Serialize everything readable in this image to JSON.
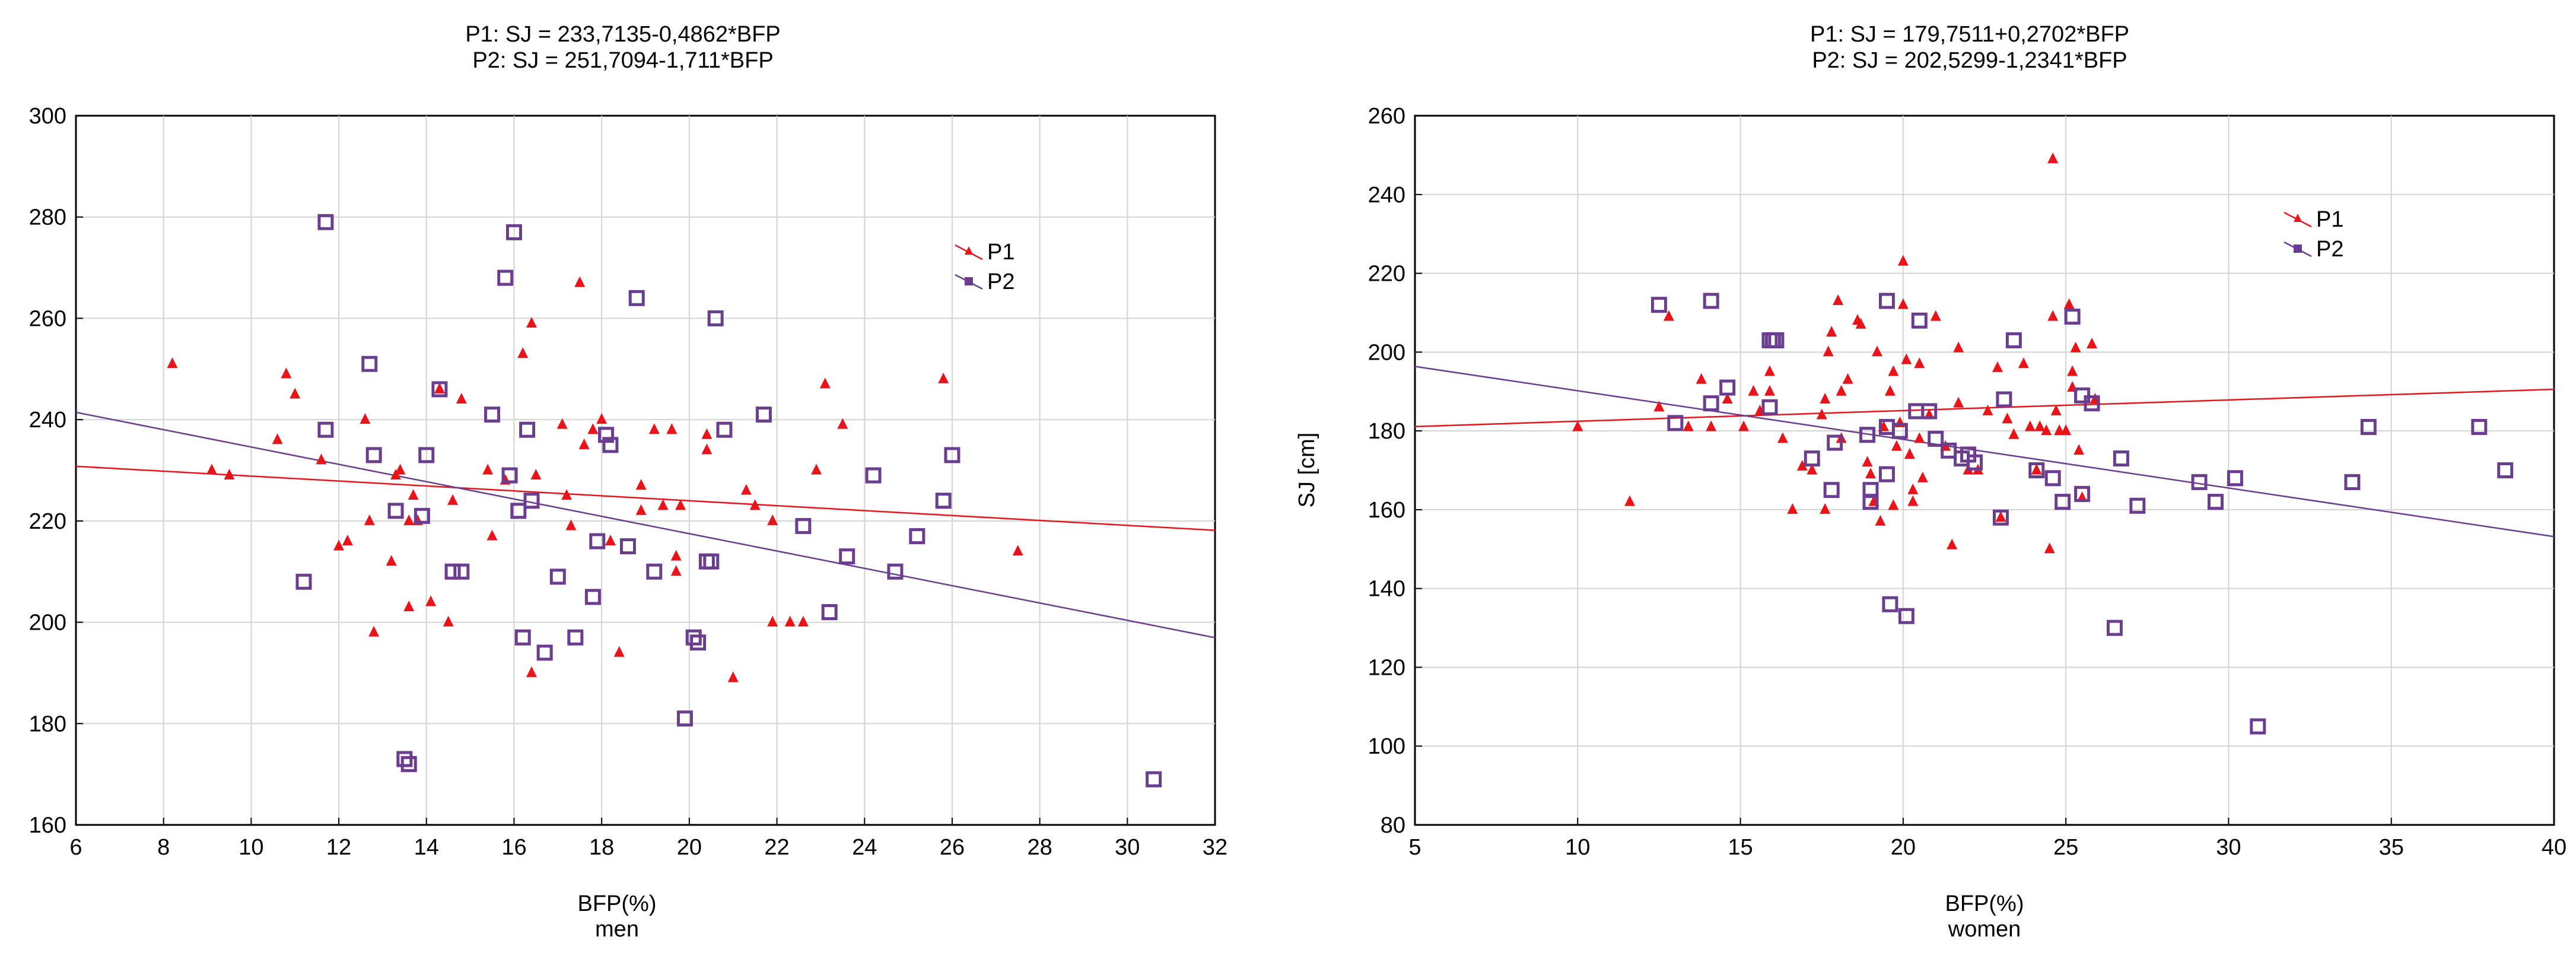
{
  "chart_data": [
    {
      "type": "scatter",
      "id": "men",
      "title_lines": [
        "P1: SJ = 233,7135-0,4862*BFP",
        "P2: SJ = 251,7094-1,711*BFP"
      ],
      "xlabel": "BFP(%)",
      "xlabel2": "men",
      "ylabel": "",
      "xlim": [
        6,
        32
      ],
      "ylim": [
        160,
        300
      ],
      "xticks": [
        6,
        8,
        10,
        12,
        14,
        16,
        18,
        20,
        22,
        24,
        26,
        28,
        30,
        32
      ],
      "yticks": [
        160,
        180,
        200,
        220,
        240,
        260,
        280,
        300
      ],
      "grid": true,
      "legend": {
        "position": "top-right",
        "entries": [
          "P1",
          "P2"
        ]
      },
      "colors": {
        "P1": "#e8141a",
        "P2": "#6b3d8f"
      },
      "series": [
        {
          "name": "P1",
          "marker": "triangle",
          "fit": {
            "intercept": 233.7135,
            "slope": -0.4862
          },
          "points": [
            [
              8.2,
              251
            ],
            [
              9.1,
              230
            ],
            [
              9.5,
              229
            ],
            [
              10.6,
              236
            ],
            [
              10.8,
              249
            ],
            [
              11,
              245
            ],
            [
              11.6,
              232
            ],
            [
              12,
              215
            ],
            [
              12.2,
              216
            ],
            [
              12.6,
              240
            ],
            [
              12.7,
              220
            ],
            [
              12.8,
              198
            ],
            [
              13.2,
              212
            ],
            [
              13.3,
              229
            ],
            [
              13.4,
              230
            ],
            [
              13.6,
              220
            ],
            [
              13.6,
              203
            ],
            [
              13.7,
              225
            ],
            [
              13.8,
              220
            ],
            [
              14.1,
              204
            ],
            [
              14.3,
              246
            ],
            [
              14.5,
              200
            ],
            [
              14.6,
              224
            ],
            [
              14.8,
              244
            ],
            [
              15.4,
              230
            ],
            [
              15.5,
              217
            ],
            [
              15.8,
              228
            ],
            [
              16.2,
              253
            ],
            [
              16.4,
              259
            ],
            [
              16.4,
              190
            ],
            [
              16.5,
              229
            ],
            [
              17.1,
              239
            ],
            [
              17.2,
              225
            ],
            [
              17.3,
              219
            ],
            [
              17.5,
              267
            ],
            [
              17.6,
              235
            ],
            [
              17.8,
              238
            ],
            [
              18,
              240
            ],
            [
              18.2,
              216
            ],
            [
              18.4,
              194
            ],
            [
              18.9,
              227
            ],
            [
              18.9,
              222
            ],
            [
              19.2,
              238
            ],
            [
              19.4,
              223
            ],
            [
              19.6,
              238
            ],
            [
              19.7,
              213
            ],
            [
              19.7,
              210
            ],
            [
              19.8,
              223
            ],
            [
              20.4,
              237
            ],
            [
              20.4,
              234
            ],
            [
              21,
              189
            ],
            [
              21.3,
              226
            ],
            [
              21.5,
              223
            ],
            [
              21.9,
              220
            ],
            [
              21.9,
              200
            ],
            [
              22.3,
              200
            ],
            [
              22.6,
              200
            ],
            [
              22.9,
              230
            ],
            [
              23.1,
              247
            ],
            [
              23.5,
              239
            ],
            [
              25.8,
              248
            ],
            [
              27.5,
              214
            ]
          ]
        },
        {
          "name": "P2",
          "marker": "square",
          "fit": {
            "intercept": 251.7094,
            "slope": -1.711
          },
          "points": [
            [
              11.2,
              208
            ],
            [
              11.7,
              279
            ],
            [
              11.7,
              238
            ],
            [
              12.7,
              251
            ],
            [
              12.8,
              233
            ],
            [
              13.3,
              222
            ],
            [
              13.5,
              173
            ],
            [
              13.6,
              172
            ],
            [
              13.9,
              221
            ],
            [
              14,
              233
            ],
            [
              14.3,
              246
            ],
            [
              14.6,
              210
            ],
            [
              14.8,
              210
            ],
            [
              15.5,
              241
            ],
            [
              15.8,
              268
            ],
            [
              15.9,
              229
            ],
            [
              16,
              277
            ],
            [
              16.1,
              222
            ],
            [
              16.2,
              197
            ],
            [
              16.3,
              238
            ],
            [
              16.4,
              224
            ],
            [
              16.7,
              194
            ],
            [
              17,
              209
            ],
            [
              17.4,
              197
            ],
            [
              17.8,
              205
            ],
            [
              17.9,
              216
            ],
            [
              18.1,
              237
            ],
            [
              18.2,
              235
            ],
            [
              18.6,
              215
            ],
            [
              18.8,
              264
            ],
            [
              19.2,
              210
            ],
            [
              19.9,
              181
            ],
            [
              20.1,
              197
            ],
            [
              20.2,
              196
            ],
            [
              20.4,
              212
            ],
            [
              20.5,
              212
            ],
            [
              20.6,
              260
            ],
            [
              20.8,
              238
            ],
            [
              21.7,
              241
            ],
            [
              22.6,
              219
            ],
            [
              23.2,
              202
            ],
            [
              23.6,
              213
            ],
            [
              24.2,
              229
            ],
            [
              24.7,
              210
            ],
            [
              25.2,
              217
            ],
            [
              25.8,
              224
            ],
            [
              26,
              233
            ],
            [
              30.6,
              169
            ]
          ]
        }
      ]
    },
    {
      "type": "scatter",
      "id": "women",
      "title_lines": [
        "P1: SJ = 179,7511+0,2702*BFP",
        "P2: SJ = 202,5299-1,2341*BFP"
      ],
      "xlabel": "BFP(%)",
      "xlabel2": "women",
      "ylabel": "SJ [cm]",
      "xlim": [
        5,
        40
      ],
      "ylim": [
        80,
        260
      ],
      "xticks": [
        5,
        10,
        15,
        20,
        25,
        30,
        35,
        40
      ],
      "yticks": [
        80,
        100,
        120,
        140,
        160,
        180,
        200,
        220,
        240,
        260
      ],
      "grid": true,
      "legend": {
        "position": "top-right",
        "entries": [
          "P1",
          "P2"
        ]
      },
      "colors": {
        "P1": "#e8141a",
        "P2": "#6b3d8f"
      },
      "series": [
        {
          "name": "P1",
          "marker": "triangle",
          "fit": {
            "intercept": 179.7511,
            "slope": 0.2702
          },
          "points": [
            [
              10,
              181
            ],
            [
              11.6,
              162
            ],
            [
              12.5,
              186
            ],
            [
              12.8,
              209
            ],
            [
              13.4,
              181
            ],
            [
              13.8,
              193
            ],
            [
              14.1,
              181
            ],
            [
              14.6,
              188
            ],
            [
              15.1,
              181
            ],
            [
              15.4,
              190
            ],
            [
              15.6,
              185
            ],
            [
              15.9,
              195
            ],
            [
              15.9,
              190
            ],
            [
              16.3,
              178
            ],
            [
              16.6,
              160
            ],
            [
              16.9,
              171
            ],
            [
              17.2,
              170
            ],
            [
              17.5,
              184
            ],
            [
              17.6,
              160
            ],
            [
              17.6,
              188
            ],
            [
              17.7,
              200
            ],
            [
              17.8,
              205
            ],
            [
              18,
              213
            ],
            [
              18.1,
              190
            ],
            [
              18.1,
              178
            ],
            [
              18.3,
              193
            ],
            [
              18.6,
              208
            ],
            [
              18.7,
              207
            ],
            [
              18.9,
              172
            ],
            [
              19,
              169
            ],
            [
              19.1,
              162
            ],
            [
              19.2,
              200
            ],
            [
              19.3,
              157
            ],
            [
              19.4,
              181
            ],
            [
              19.6,
              190
            ],
            [
              19.7,
              161
            ],
            [
              19.7,
              195
            ],
            [
              19.8,
              176
            ],
            [
              19.9,
              182
            ],
            [
              20,
              223
            ],
            [
              20,
              212
            ],
            [
              20.1,
              198
            ],
            [
              20.2,
              174
            ],
            [
              20.3,
              165
            ],
            [
              20.3,
              162
            ],
            [
              20.5,
              197
            ],
            [
              20.5,
              178
            ],
            [
              20.6,
              168
            ],
            [
              20.8,
              184
            ],
            [
              21,
              209
            ],
            [
              21.3,
              176
            ],
            [
              21.5,
              151
            ],
            [
              21.7,
              201
            ],
            [
              21.7,
              187
            ],
            [
              22,
              170
            ],
            [
              22.3,
              170
            ],
            [
              22.6,
              185
            ],
            [
              22.9,
              196
            ],
            [
              23,
              158
            ],
            [
              23.2,
              183
            ],
            [
              23.4,
              179
            ],
            [
              23.7,
              197
            ],
            [
              23.9,
              181
            ],
            [
              24.1,
              170
            ],
            [
              24.2,
              181
            ],
            [
              24.4,
              180
            ],
            [
              24.5,
              150
            ],
            [
              24.6,
              249
            ],
            [
              24.6,
              209
            ],
            [
              24.7,
              185
            ],
            [
              24.8,
              180
            ],
            [
              25,
              180
            ],
            [
              25.1,
              212
            ],
            [
              25.2,
              191
            ],
            [
              25.2,
              195
            ],
            [
              25.3,
              201
            ],
            [
              25.4,
              175
            ],
            [
              25.5,
              163
            ],
            [
              25.8,
              202
            ],
            [
              25.9,
              188
            ]
          ]
        },
        {
          "name": "P2",
          "marker": "square",
          "fit": {
            "intercept": 202.5299,
            "slope": -1.2341
          },
          "points": [
            [
              12.5,
              212
            ],
            [
              13,
              182
            ],
            [
              14.1,
              213
            ],
            [
              14.1,
              187
            ],
            [
              14.6,
              191
            ],
            [
              15.9,
              203
            ],
            [
              15.9,
              186
            ],
            [
              16,
              203
            ],
            [
              16.1,
              203
            ],
            [
              17.2,
              173
            ],
            [
              17.8,
              165
            ],
            [
              17.9,
              177
            ],
            [
              18.9,
              179
            ],
            [
              19,
              165
            ],
            [
              19,
              162
            ],
            [
              19.5,
              213
            ],
            [
              19.5,
              181
            ],
            [
              19.5,
              169
            ],
            [
              19.6,
              136
            ],
            [
              19.9,
              180
            ],
            [
              20.1,
              133
            ],
            [
              20.4,
              185
            ],
            [
              20.5,
              208
            ],
            [
              20.8,
              185
            ],
            [
              21,
              178
            ],
            [
              21.4,
              175
            ],
            [
              21.8,
              173
            ],
            [
              22,
              174
            ],
            [
              22.2,
              172
            ],
            [
              23,
              158
            ],
            [
              23.1,
              188
            ],
            [
              23.4,
              203
            ],
            [
              24.1,
              170
            ],
            [
              24.6,
              168
            ],
            [
              24.9,
              162
            ],
            [
              25.2,
              209
            ],
            [
              25.5,
              189
            ],
            [
              25.5,
              164
            ],
            [
              25.8,
              187
            ],
            [
              26.5,
              130
            ],
            [
              26.7,
              173
            ],
            [
              27.2,
              161
            ],
            [
              29.1,
              167
            ],
            [
              29.6,
              162
            ],
            [
              30.2,
              168
            ],
            [
              30.9,
              105
            ],
            [
              33.8,
              167
            ],
            [
              34.3,
              181
            ],
            [
              37.7,
              181
            ],
            [
              38.5,
              170
            ]
          ]
        }
      ]
    }
  ]
}
